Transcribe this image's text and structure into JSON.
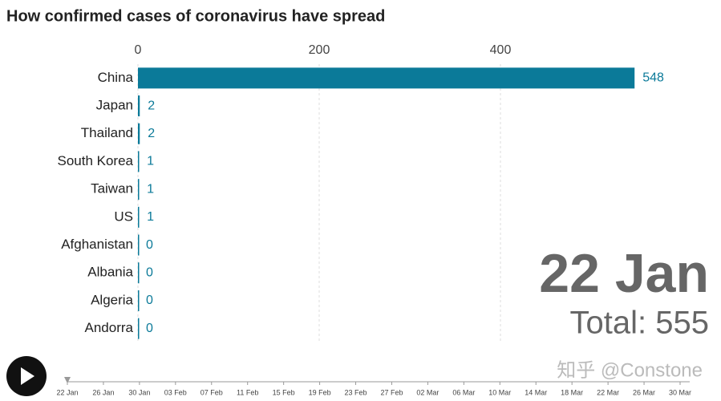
{
  "chart_data": {
    "type": "bar",
    "orientation": "horizontal",
    "title": "How confirmed cases of coronavirus have spread",
    "categories": [
      "China",
      "Japan",
      "Thailand",
      "South Korea",
      "Taiwan",
      "US",
      "Afghanistan",
      "Albania",
      "Algeria",
      "Andorra"
    ],
    "values": [
      548,
      2,
      2,
      1,
      1,
      1,
      0,
      0,
      0,
      0
    ],
    "color": "#0b7a99",
    "xlim": [
      0,
      600
    ],
    "xticks": [
      0,
      200,
      400
    ],
    "grid": true,
    "current_date": "22 Jan",
    "total_label": "Total: 555",
    "timeline": [
      "22 Jan",
      "26 Jan",
      "30 Jan",
      "03 Feb",
      "07 Feb",
      "11 Feb",
      "15 Feb",
      "19 Feb",
      "23 Feb",
      "27 Feb",
      "02 Mar",
      "06 Mar",
      "10 Mar",
      "14 Mar",
      "18 Mar",
      "22 Mar",
      "26 Mar",
      "30 Mar"
    ],
    "watermark": "知乎 @Constone"
  }
}
